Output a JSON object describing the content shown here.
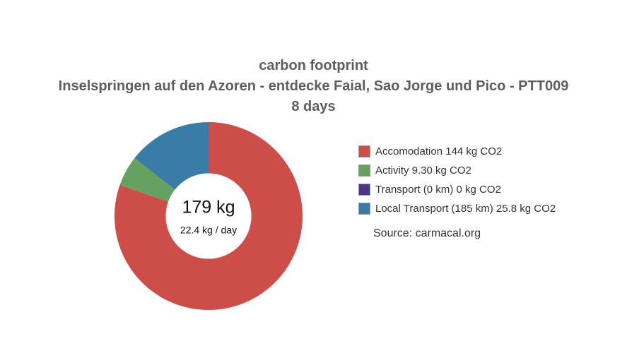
{
  "colors": {
    "background": "#ffffff",
    "title_text": "#5e5e5e",
    "body_text": "#333333",
    "center_text": "#111111",
    "swatch_border": "#999999"
  },
  "source_note": "Source: carmacal.org",
  "chart_data": {
    "type": "pie",
    "donut": true,
    "title": "carbon footprint",
    "subtitle": "Inselspringen auf den Azoren - entdecke Faial, Sao Jorge und Pico - PTT009",
    "duration_label": "8 days",
    "days": 8,
    "unit": "kg CO2",
    "total_kg": 179.1,
    "center": {
      "total": "179 kg",
      "per_day": "22.4 kg / day"
    },
    "start_angle": "12-oclock",
    "direction": "clockwise",
    "legend_position": "right",
    "segments": [
      {
        "name": "accomodation",
        "label": "Accomodation 144 kg CO2",
        "value_kg": 144,
        "color": "#cd4d49"
      },
      {
        "name": "activity",
        "label": "Activity 9.30 kg CO2",
        "value_kg": 9.3,
        "color": "#65a260"
      },
      {
        "name": "transport",
        "label": "Transport (0 km) 0 kg CO2",
        "value_kg": 0,
        "distance_km": 0,
        "color": "#4b3589"
      },
      {
        "name": "local-transport",
        "label": "Local Transport (185 km) 25.8 kg CO2",
        "value_kg": 25.8,
        "distance_km": 185,
        "color": "#3a7ca8"
      }
    ]
  }
}
